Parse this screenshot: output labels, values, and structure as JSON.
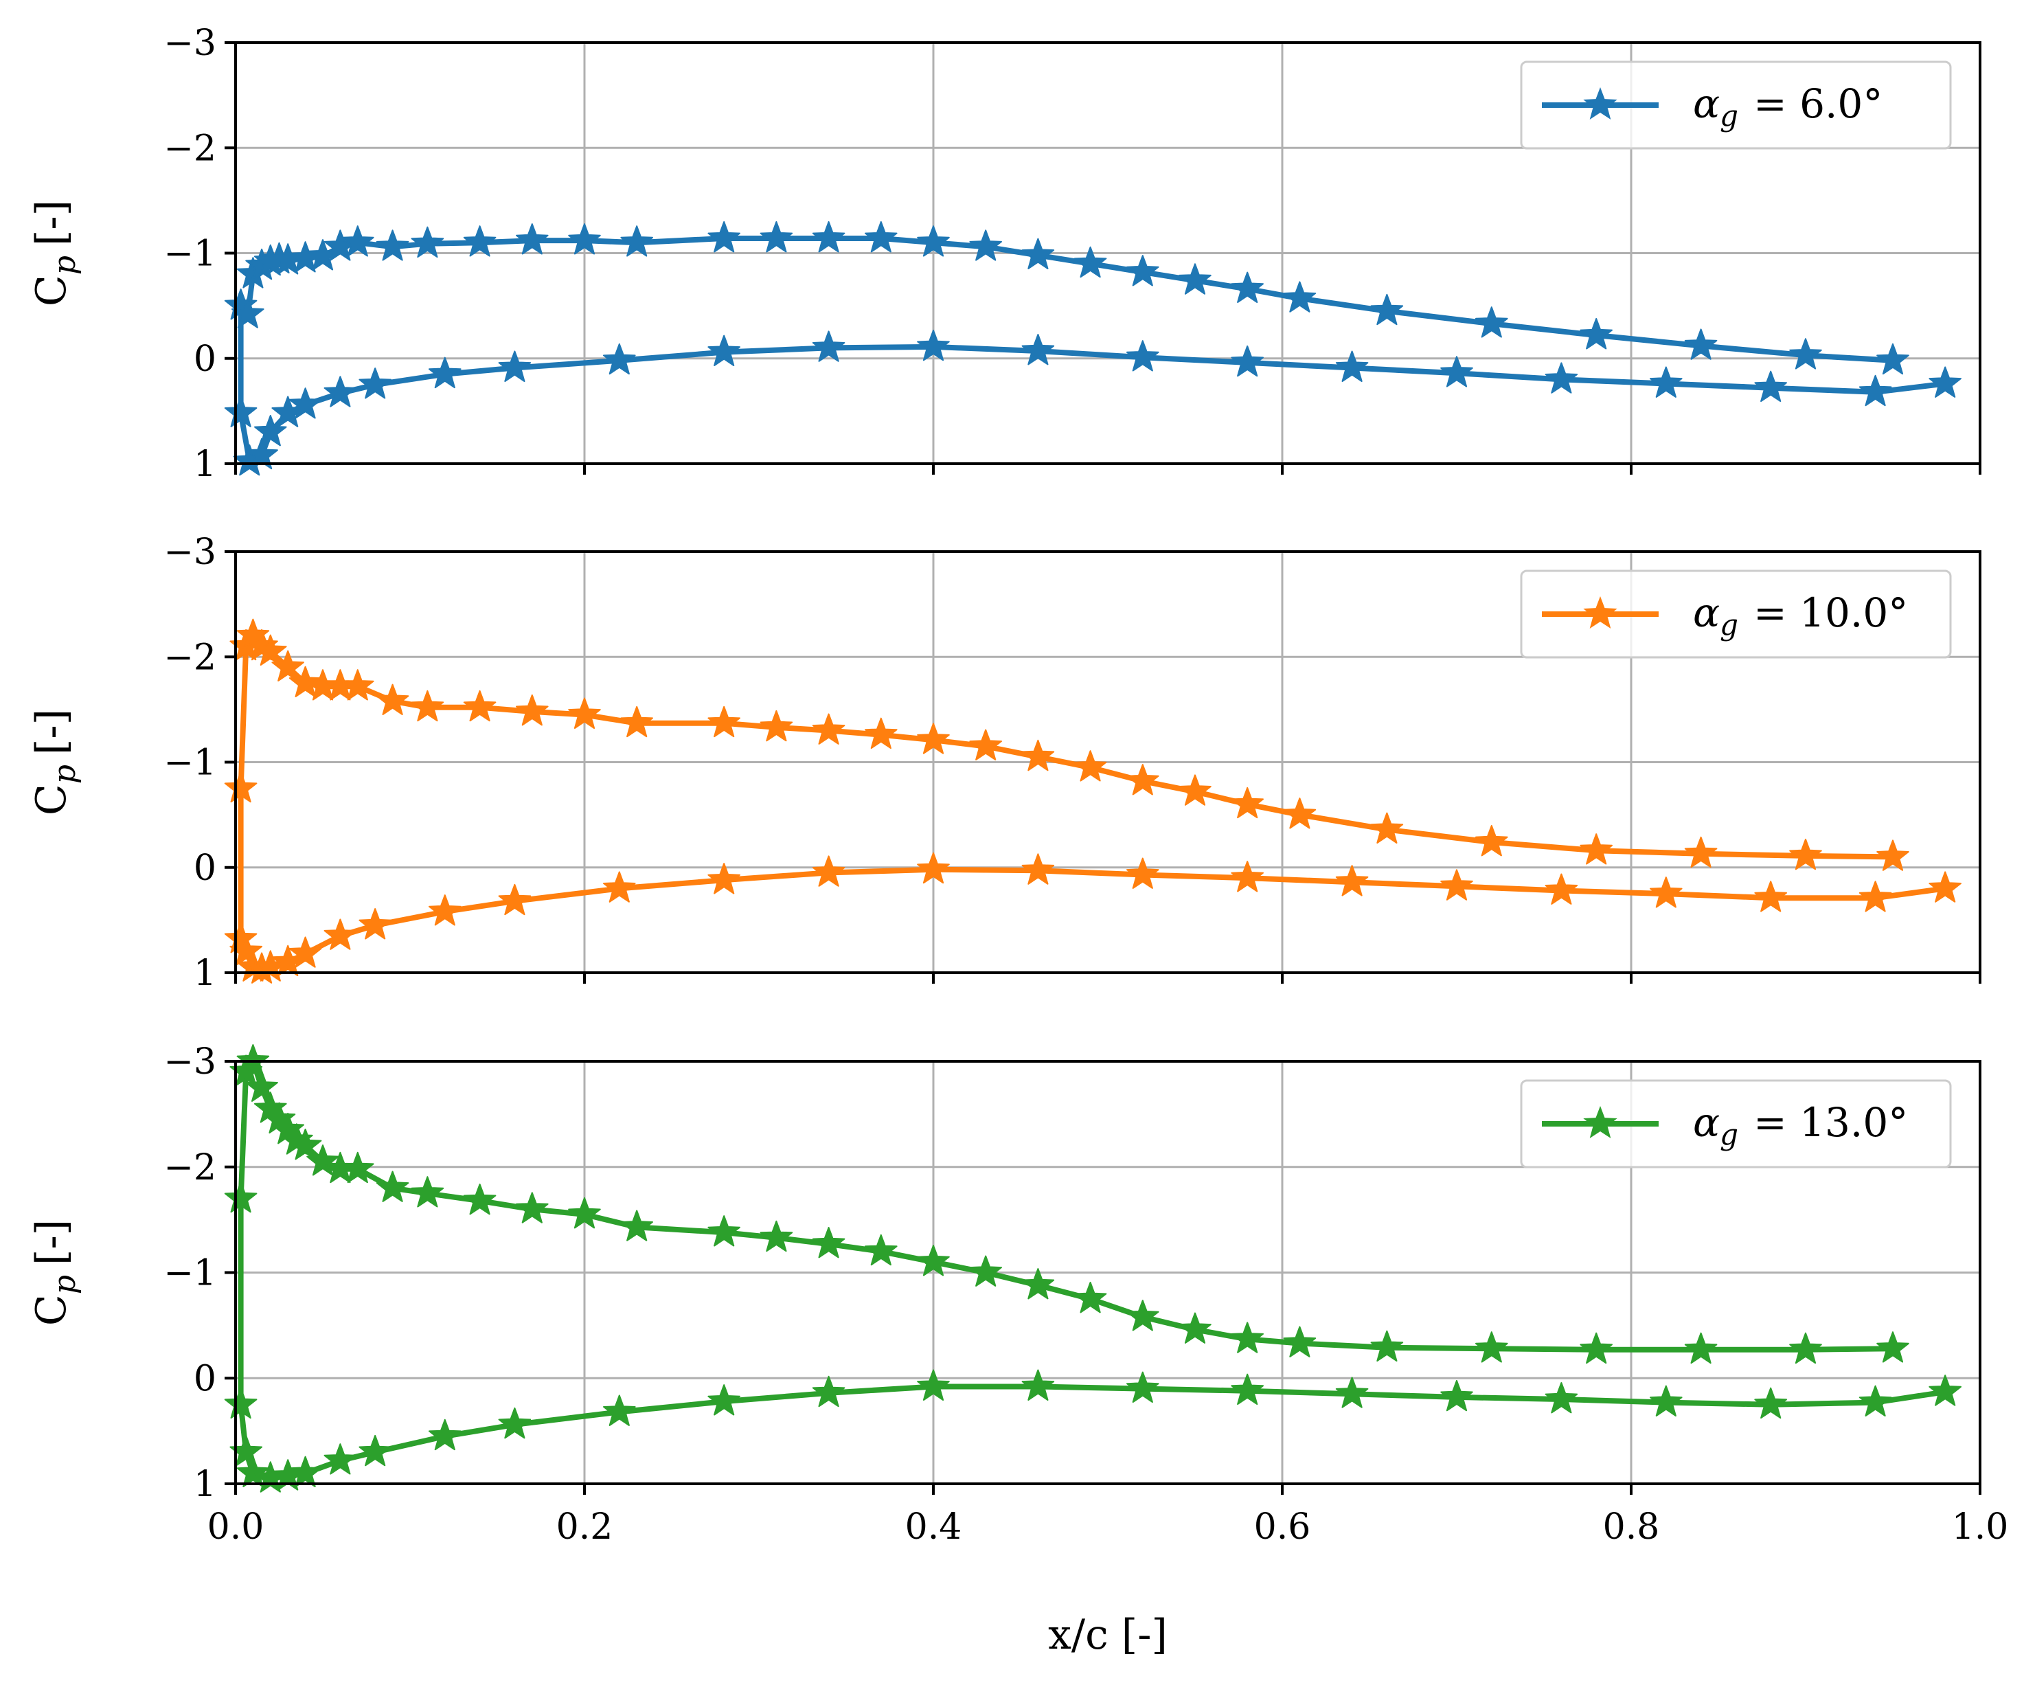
{
  "chart_data": [
    {
      "type": "line",
      "ylabel": "Cp [-]",
      "ylabel_main": "C",
      "ylabel_sub": "p",
      "ylabel_unit": "[-]",
      "xlabel": "",
      "xlim": [
        0.0,
        1.0
      ],
      "ylim": [
        1,
        -3
      ],
      "y_inverted": true,
      "grid": true,
      "legend_position": "top-right",
      "xticks": [
        0.0,
        0.2,
        0.4,
        0.6,
        0.8,
        1.0
      ],
      "yticks": [
        -3,
        -2,
        -1,
        0,
        1
      ],
      "series": [
        {
          "name": "αg = 6.0°",
          "legend_label": "α",
          "legend_sub": "g",
          "legend_value": "= 6.0°",
          "color": "#1f77b4",
          "marker": "star",
          "upper": {
            "x": [
              0.003,
              0.007,
              0.01,
              0.015,
              0.02,
              0.025,
              0.03,
              0.04,
              0.05,
              0.06,
              0.07,
              0.09,
              0.11,
              0.14,
              0.17,
              0.2,
              0.23,
              0.28,
              0.31,
              0.34,
              0.37,
              0.4,
              0.43,
              0.46,
              0.49,
              0.52,
              0.55,
              0.58,
              0.61,
              0.66,
              0.72,
              0.78,
              0.84,
              0.9,
              0.95
            ],
            "y": [
              -0.5,
              -0.42,
              -0.8,
              -0.88,
              -0.92,
              -0.94,
              -0.93,
              -0.95,
              -0.97,
              -1.06,
              -1.1,
              -1.06,
              -1.09,
              -1.1,
              -1.12,
              -1.12,
              -1.1,
              -1.14,
              -1.14,
              -1.14,
              -1.14,
              -1.1,
              -1.06,
              -0.98,
              -0.9,
              -0.82,
              -0.74,
              -0.66,
              -0.57,
              -0.45,
              -0.33,
              -0.22,
              -0.12,
              -0.03,
              0.02
            ]
          },
          "lower": {
            "x": [
              0.003,
              0.008,
              0.015,
              0.02,
              0.03,
              0.04,
              0.06,
              0.08,
              0.12,
              0.16,
              0.22,
              0.28,
              0.34,
              0.4,
              0.46,
              0.52,
              0.58,
              0.64,
              0.7,
              0.76,
              0.82,
              0.88,
              0.94,
              0.98
            ],
            "y": [
              0.52,
              0.98,
              0.92,
              0.7,
              0.52,
              0.44,
              0.33,
              0.25,
              0.15,
              0.09,
              0.02,
              -0.06,
              -0.1,
              -0.11,
              -0.07,
              -0.01,
              0.04,
              0.09,
              0.14,
              0.2,
              0.24,
              0.28,
              0.32,
              0.24
            ]
          }
        }
      ]
    },
    {
      "type": "line",
      "ylabel": "Cp [-]",
      "ylabel_main": "C",
      "ylabel_sub": "p",
      "ylabel_unit": "[-]",
      "xlabel": "",
      "xlim": [
        0.0,
        1.0
      ],
      "ylim": [
        1,
        -3
      ],
      "y_inverted": true,
      "grid": true,
      "legend_position": "top-right",
      "xticks": [
        0.0,
        0.2,
        0.4,
        0.6,
        0.8,
        1.0
      ],
      "yticks": [
        -3,
        -2,
        -1,
        0,
        1
      ],
      "series": [
        {
          "name": "αg = 10.0°",
          "legend_label": "α",
          "legend_sub": "g",
          "legend_value": "= 10.0°",
          "color": "#ff7f0e",
          "marker": "star",
          "upper": {
            "x": [
              0.003,
              0.006,
              0.01,
              0.015,
              0.02,
              0.03,
              0.04,
              0.05,
              0.06,
              0.07,
              0.09,
              0.11,
              0.14,
              0.17,
              0.2,
              0.23,
              0.28,
              0.31,
              0.34,
              0.37,
              0.4,
              0.43,
              0.46,
              0.49,
              0.52,
              0.55,
              0.58,
              0.61,
              0.66,
              0.72,
              0.78,
              0.84,
              0.9,
              0.95
            ],
            "y": [
              -0.75,
              -2.1,
              -2.2,
              -2.1,
              -2.05,
              -1.9,
              -1.75,
              -1.72,
              -1.72,
              -1.72,
              -1.58,
              -1.52,
              -1.52,
              -1.48,
              -1.45,
              -1.37,
              -1.37,
              -1.33,
              -1.3,
              -1.26,
              -1.21,
              -1.15,
              -1.05,
              -0.95,
              -0.82,
              -0.72,
              -0.6,
              -0.5,
              -0.36,
              -0.24,
              -0.16,
              -0.13,
              -0.11,
              -0.1
            ]
          },
          "lower": {
            "x": [
              0.003,
              0.006,
              0.01,
              0.015,
              0.02,
              0.03,
              0.04,
              0.06,
              0.08,
              0.12,
              0.16,
              0.22,
              0.28,
              0.34,
              0.4,
              0.46,
              0.52,
              0.58,
              0.64,
              0.7,
              0.76,
              0.82,
              0.88,
              0.94,
              0.98
            ],
            "y": [
              0.68,
              0.8,
              0.95,
              0.97,
              0.95,
              0.9,
              0.82,
              0.65,
              0.55,
              0.42,
              0.32,
              0.2,
              0.12,
              0.05,
              0.02,
              0.03,
              0.07,
              0.1,
              0.14,
              0.18,
              0.22,
              0.25,
              0.29,
              0.29,
              0.2
            ]
          }
        }
      ]
    },
    {
      "type": "line",
      "ylabel": "Cp [-]",
      "ylabel_main": "C",
      "ylabel_sub": "p",
      "ylabel_unit": "[-]",
      "xlabel": "x/c [-]",
      "xlim": [
        0.0,
        1.0
      ],
      "ylim": [
        1,
        -3
      ],
      "y_inverted": true,
      "grid": true,
      "legend_position": "top-right",
      "xticks": [
        0.0,
        0.2,
        0.4,
        0.6,
        0.8,
        1.0
      ],
      "yticks": [
        -3,
        -2,
        -1,
        0,
        1
      ],
      "series": [
        {
          "name": "αg = 13.0°",
          "legend_label": "α",
          "legend_sub": "g",
          "legend_value": "= 13.0°",
          "color": "#2ca02c",
          "marker": "star",
          "upper": {
            "x": [
              0.003,
              0.006,
              0.01,
              0.015,
              0.02,
              0.025,
              0.03,
              0.035,
              0.04,
              0.05,
              0.06,
              0.07,
              0.09,
              0.11,
              0.14,
              0.17,
              0.2,
              0.23,
              0.28,
              0.31,
              0.34,
              0.37,
              0.4,
              0.43,
              0.46,
              0.49,
              0.52,
              0.55,
              0.58,
              0.61,
              0.66,
              0.72,
              0.78,
              0.84,
              0.9,
              0.95
            ],
            "y": [
              -1.7,
              -2.9,
              -3.0,
              -2.75,
              -2.55,
              -2.45,
              -2.35,
              -2.25,
              -2.2,
              -2.05,
              -1.98,
              -1.98,
              -1.8,
              -1.75,
              -1.68,
              -1.6,
              -1.55,
              -1.43,
              -1.38,
              -1.33,
              -1.27,
              -1.2,
              -1.1,
              -1.0,
              -0.88,
              -0.75,
              -0.58,
              -0.46,
              -0.37,
              -0.33,
              -0.29,
              -0.28,
              -0.27,
              -0.27,
              -0.27,
              -0.28
            ]
          },
          "lower": {
            "x": [
              0.003,
              0.006,
              0.01,
              0.02,
              0.03,
              0.04,
              0.06,
              0.08,
              0.12,
              0.16,
              0.22,
              0.28,
              0.34,
              0.4,
              0.46,
              0.52,
              0.58,
              0.64,
              0.7,
              0.76,
              0.82,
              0.88,
              0.94,
              0.98
            ],
            "y": [
              0.25,
              0.7,
              0.9,
              0.95,
              0.93,
              0.9,
              0.78,
              0.7,
              0.55,
              0.44,
              0.32,
              0.22,
              0.14,
              0.08,
              0.08,
              0.1,
              0.12,
              0.15,
              0.18,
              0.2,
              0.23,
              0.25,
              0.23,
              0.13
            ]
          }
        }
      ]
    }
  ]
}
